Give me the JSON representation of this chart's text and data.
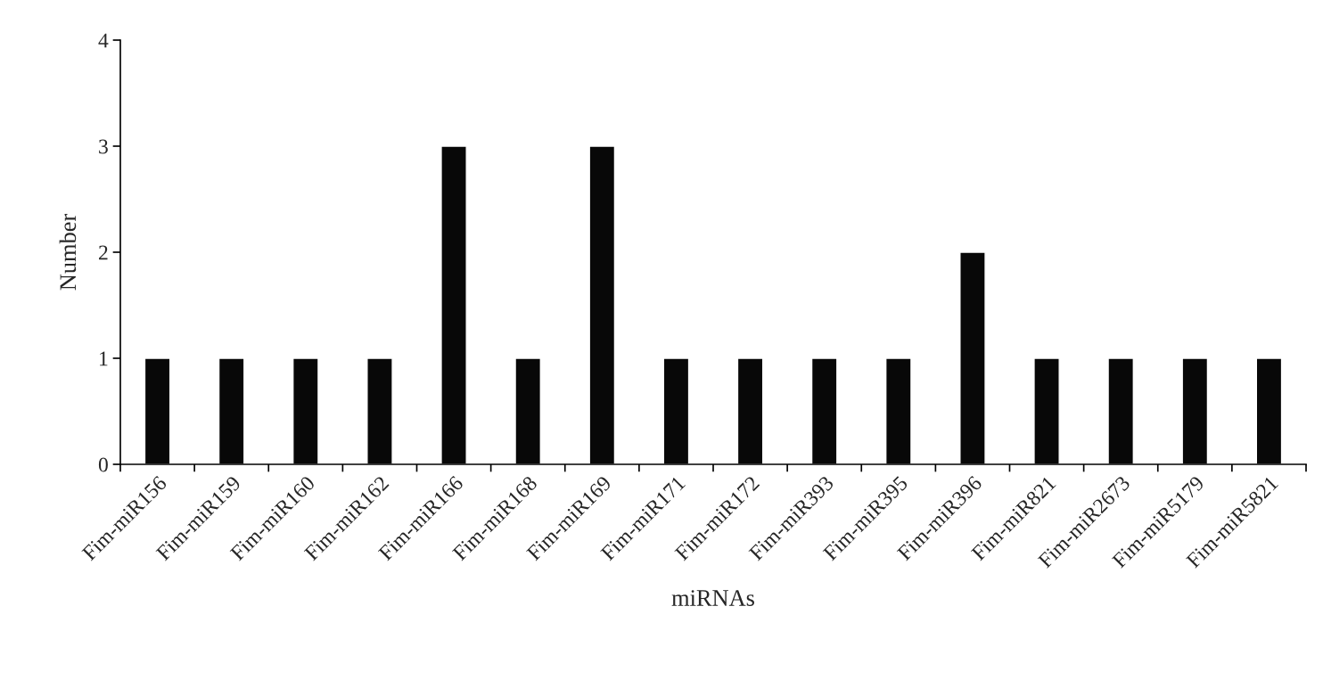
{
  "chart_data": {
    "type": "bar",
    "xlabel": "miRNAs",
    "ylabel": "Number",
    "categories": [
      "Fim-miR156",
      "Fim-miR159",
      "Fim-miR160",
      "Fim-miR162",
      "Fim-miR166",
      "Fim-miR168",
      "Fim-miR169",
      "Fim-miR171",
      "Fim-miR172",
      "Fim-miR393",
      "Fim-miR395",
      "Fim-miR396",
      "Fim-miR821",
      "Fim-miR2673",
      "Fim-miR5179",
      "Fim-miR5821"
    ],
    "values": [
      1,
      1,
      1,
      1,
      3,
      1,
      3,
      1,
      1,
      1,
      1,
      2,
      1,
      1,
      1,
      1
    ],
    "color": "#080808",
    "ylim": [
      0,
      4
    ],
    "yticks": [
      0,
      1,
      2,
      3,
      4
    ],
    "grid": false,
    "legend": false
  }
}
